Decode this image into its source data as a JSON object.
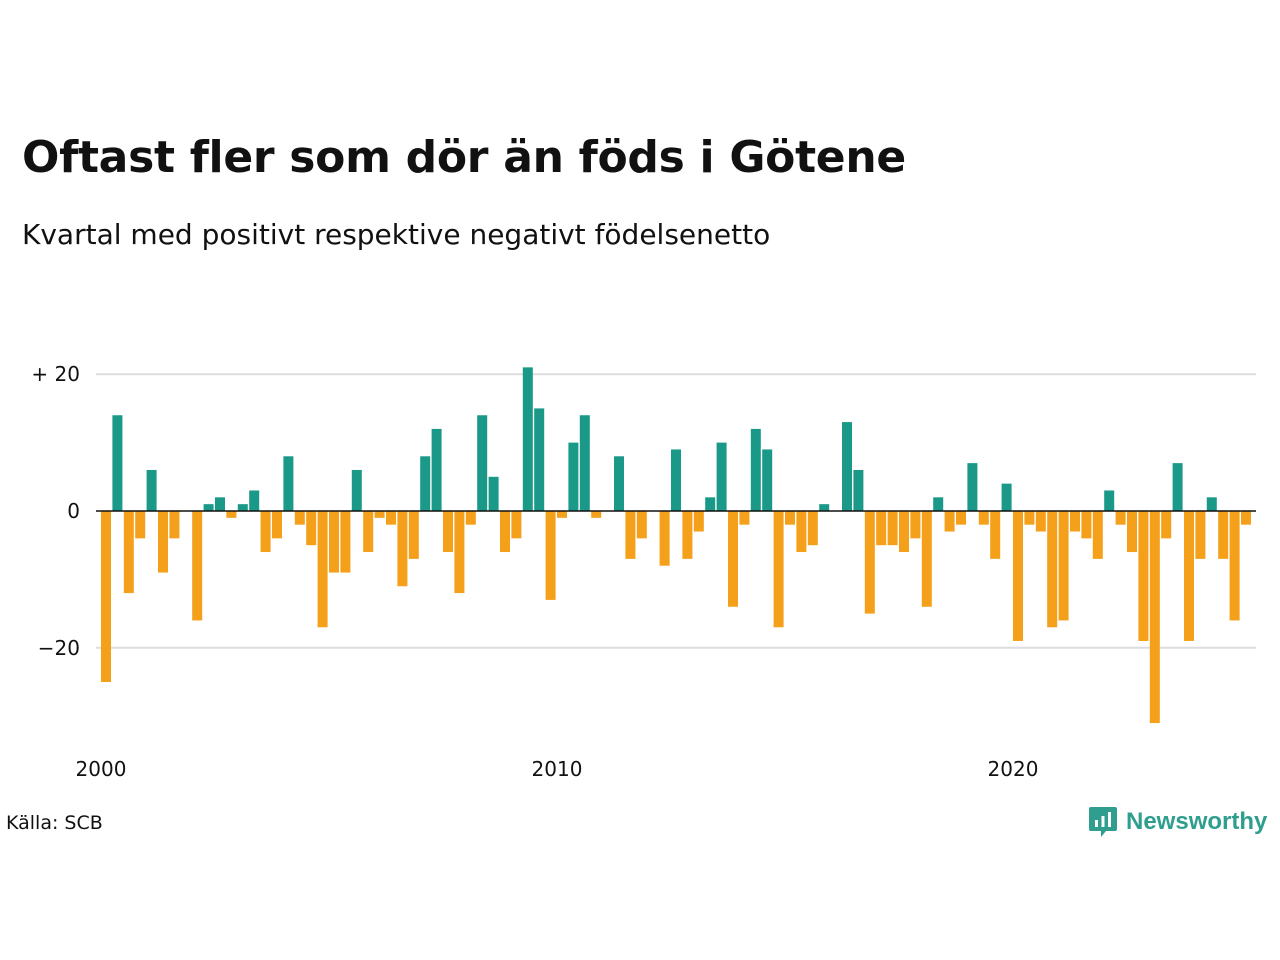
{
  "title": "Oftast fler som dör än föds i Götene",
  "subtitle": "Kvartal med positivt respektive negativt födelsenetto",
  "source": "Källa: SCB",
  "brand": "Newsworthy",
  "colors": {
    "positive": "#1a9988",
    "negative": "#f5a01a",
    "grid": "#dddddd",
    "zero_line": "#111111",
    "brand": "#2f9e8f"
  },
  "chart_data": {
    "type": "bar",
    "title": "Oftast fler som dör än föds i Götene",
    "subtitle": "Kvartal med positivt respektive negativt födelsenetto",
    "xlabel": "",
    "ylabel": "",
    "x_start": 2000,
    "quarters_per_year": 4,
    "x_ticks": [
      {
        "value": 2000,
        "label": "2000"
      },
      {
        "value": 2010,
        "label": "2010"
      },
      {
        "value": 2020,
        "label": "2020"
      }
    ],
    "y_ticks": [
      {
        "value": 20,
        "label": "+ 20"
      },
      {
        "value": 0,
        "label": "0"
      },
      {
        "value": -20,
        "label": "−20"
      }
    ],
    "ylim": [
      -32,
      22
    ],
    "grid": true,
    "legend": "none",
    "values": [
      -25,
      14,
      -12,
      -4,
      6,
      -9,
      -4,
      0,
      -16,
      1,
      2,
      -1,
      1,
      3,
      -6,
      -4,
      8,
      -2,
      -5,
      -17,
      -9,
      -9,
      6,
      -6,
      -1,
      -2,
      -11,
      -7,
      8,
      12,
      -6,
      -12,
      -2,
      14,
      5,
      -6,
      -4,
      21,
      15,
      -13,
      -1,
      10,
      14,
      -1,
      0,
      8,
      -7,
      -4,
      0,
      -8,
      9,
      -7,
      -3,
      2,
      10,
      -14,
      -2,
      12,
      9,
      -17,
      -2,
      -6,
      -5,
      1,
      0,
      13,
      6,
      -15,
      -5,
      -5,
      -6,
      -4,
      -14,
      2,
      -3,
      -2,
      7,
      -2,
      -7,
      4,
      -19,
      -2,
      -3,
      -17,
      -16,
      -3,
      -4,
      -7,
      3,
      -2,
      -6,
      -19,
      -31,
      -4,
      7,
      -19,
      -7,
      2,
      -7,
      -16,
      -2
    ]
  }
}
